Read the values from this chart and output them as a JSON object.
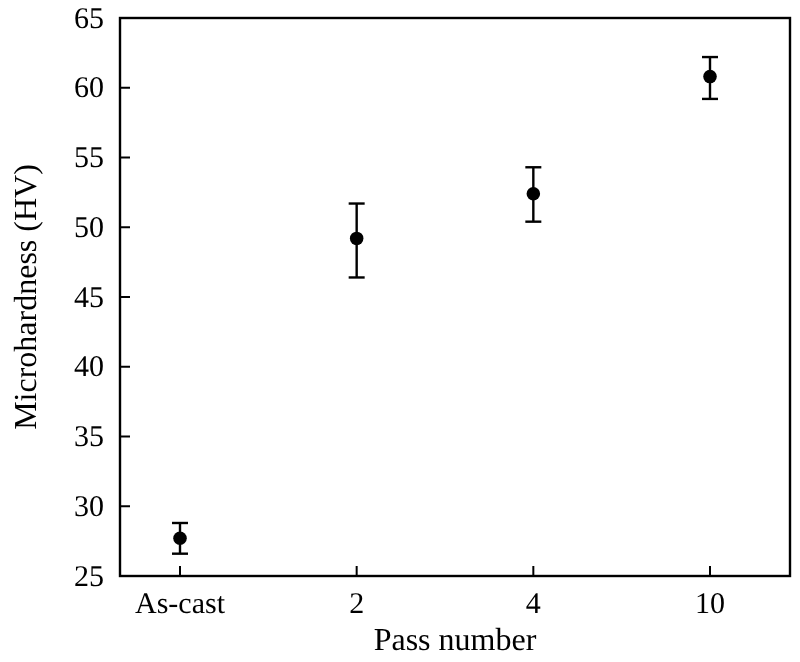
{
  "chart_data": {
    "type": "scatter",
    "xlabel": "Pass number",
    "ylabel": "Microhardness (HV)",
    "categories": [
      "As-cast",
      "2",
      "4",
      "10"
    ],
    "values": [
      27.7,
      49.2,
      52.4,
      60.8
    ],
    "errors": [
      [
        26.6,
        28.8
      ],
      [
        46.4,
        51.7
      ],
      [
        50.4,
        54.3
      ],
      [
        59.2,
        62.2
      ]
    ],
    "color": "#000000",
    "marker": "circle",
    "ylim": [
      25,
      65
    ],
    "yticks": [
      25,
      30,
      35,
      40,
      45,
      50,
      55,
      60,
      65
    ],
    "grid": false
  }
}
